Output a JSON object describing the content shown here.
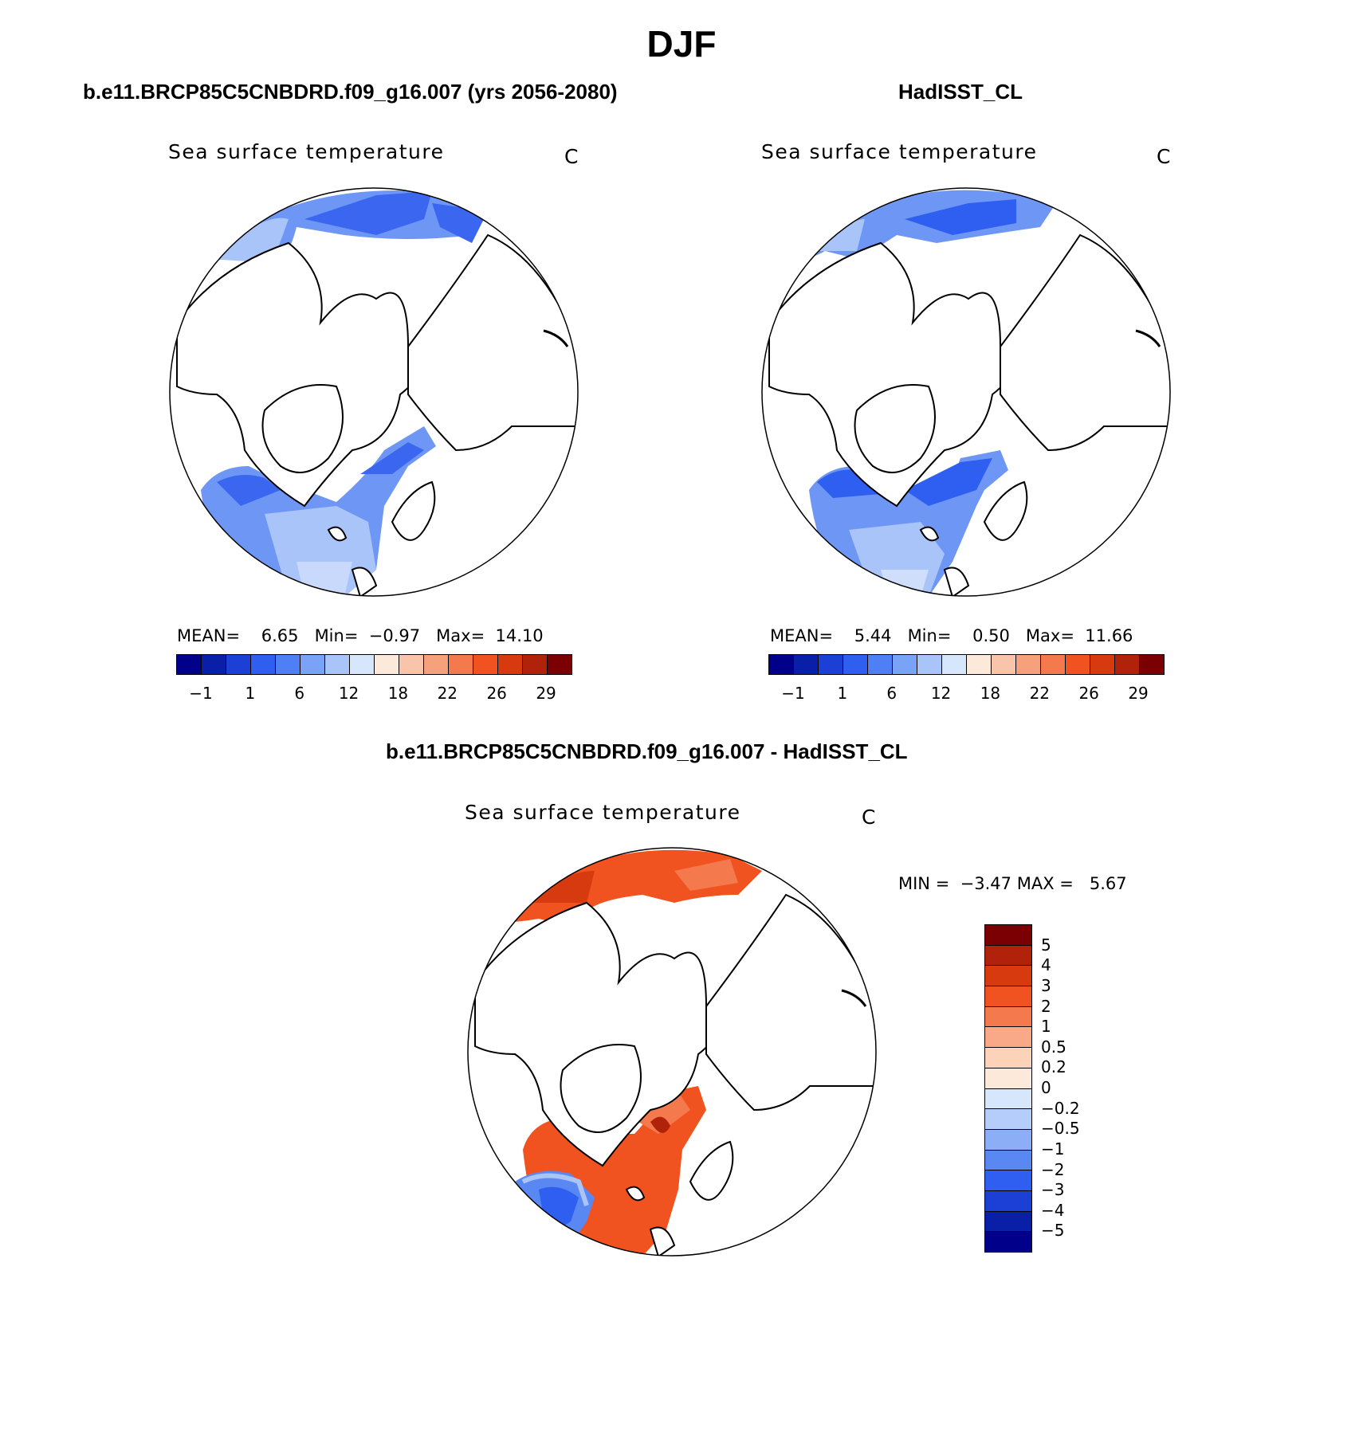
{
  "title": "DJF",
  "panels": {
    "model": {
      "title": "b.e11.BRCP85C5CNBDRD.f09_g16.007 (yrs 2056-2080)",
      "variable": "Sea surface temperature",
      "units": "C",
      "stats": {
        "mean_label": "MEAN=",
        "mean": "6.65",
        "min_label": "Min=",
        "min": "−0.97",
        "max_label": "Max=",
        "max": "14.10"
      }
    },
    "obs": {
      "title": "HadISST_CL",
      "variable": "Sea surface temperature",
      "units": "C",
      "stats": {
        "mean_label": "MEAN=",
        "mean": "5.44",
        "min_label": "Min=",
        "min": "0.50",
        "max_label": "Max=",
        "max": "11.66"
      }
    },
    "diff": {
      "title": "b.e11.BRCP85C5CNBDRD.f09_g16.007 - HadISST_CL",
      "variable": "Sea surface temperature",
      "units": "C",
      "stats": {
        "min_label": "MIN =",
        "min": "−3.47",
        "max_label": "MAX =",
        "max": "5.67"
      }
    }
  },
  "sst_colorbar": {
    "colors": [
      "#00008b",
      "#0a1fa8",
      "#1c3fd6",
      "#2f5ff0",
      "#4f7ff5",
      "#7aa2f7",
      "#a9c4f9",
      "#d6e6fb",
      "#fde9d9",
      "#f9c5aa",
      "#f6a07c",
      "#f47a4d",
      "#f0531f",
      "#d83a10",
      "#b0220a",
      "#7a0004"
    ],
    "tick_labels": [
      "−1",
      "1",
      "6",
      "12",
      "18",
      "22",
      "26",
      "29"
    ]
  },
  "diff_colorbar": {
    "colors": [
      "#7a0004",
      "#b0220a",
      "#d83a10",
      "#f0531f",
      "#f47a4d",
      "#f9a987",
      "#fcd3b8",
      "#fde9d9",
      "#d6e6fb",
      "#b4cdfa",
      "#8caef7",
      "#5a88f2",
      "#2f5ff0",
      "#1c3fd6",
      "#0a1fa8",
      "#00008b"
    ],
    "tick_labels": [
      "5",
      "4",
      "3",
      "2",
      "1",
      "0.5",
      "0.2",
      "0",
      "−0.2",
      "−0.5",
      "−1",
      "−2",
      "−3",
      "−4",
      "−5"
    ]
  },
  "map_colors": {
    "model_dark": "#3a66f0",
    "model_mid": "#6e96f5",
    "model_light": "#a9c4f9",
    "model_pale": "#c8d9fb",
    "obs_dark": "#2f5ff0",
    "obs_mid": "#6e96f5",
    "obs_light": "#a9c4f9",
    "obs_pale": "#cfdffb",
    "diff_red": "#f0531f",
    "diff_orange": "#f47a4d",
    "diff_dark": "#b0220a",
    "diff_blue": "#5a88f2",
    "diff_lightblue": "#a9c4f9"
  }
}
